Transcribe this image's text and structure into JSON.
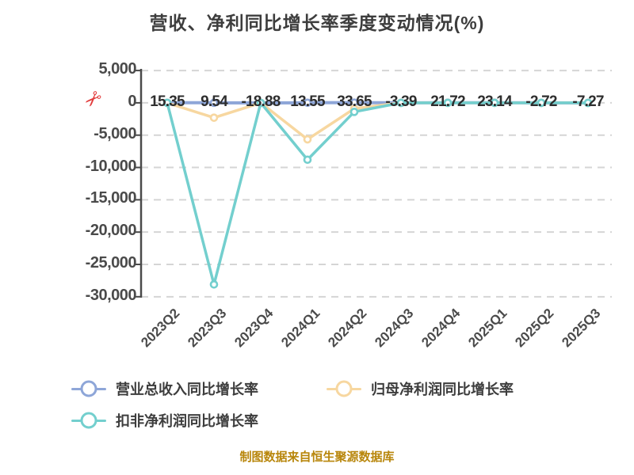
{
  "title": "营收、净利同比增长率季度变动情况(%)",
  "footer": "制图数据来自恒生聚源数据库",
  "icons": {
    "axis_break_scissors": "✂"
  },
  "colors": {
    "title_text": "#3D3D3D",
    "axis_text": "#4A4A4A",
    "axis_line": "#4A4A4A",
    "grid_line": "#D5D5D5",
    "data_label_text": "#2E2E2E",
    "legend_text": "#3D3D3D",
    "footer_text": "#B8860B",
    "scissors_red": "#E23C3C",
    "marker_fill": "#FFFFFF"
  },
  "legend": {
    "items": [
      {
        "label": "营业总收入同比增长率"
      },
      {
        "label": "归母净利润同比增长率"
      },
      {
        "label": "扣非净利润同比增长率"
      }
    ]
  },
  "chart_data": {
    "type": "line",
    "title": "营收、净利同比增长率季度变动情况(%)",
    "xlabel": "",
    "ylabel": "",
    "ylim": [
      -30000,
      5000
    ],
    "grid": "horizontal-dashed",
    "legend_position": "bottom-left",
    "axis_break_marker": "red scissors at zero line",
    "categories": [
      "2023Q2",
      "2023Q3",
      "2023Q4",
      "2024Q1",
      "2024Q2",
      "2024Q3",
      "2024Q4",
      "2025Q1",
      "2025Q2",
      "2025Q3"
    ],
    "yticks": [
      {
        "value": 5000,
        "label": "5,000"
      },
      {
        "value": 0,
        "label": "0"
      },
      {
        "value": -5000,
        "label": "-5,000"
      },
      {
        "value": -10000,
        "label": "-10,000"
      },
      {
        "value": -15000,
        "label": "-15,000"
      },
      {
        "value": -20000,
        "label": "-20,000"
      },
      {
        "value": -25000,
        "label": "-25,000"
      },
      {
        "value": -30000,
        "label": "-30,000"
      }
    ],
    "series": [
      {
        "name": "营业总收入同比增长率",
        "color": "#8EA6D8",
        "line_width": 4,
        "show_labels": true,
        "values": [
          15.35,
          9.54,
          -18.88,
          13.55,
          33.65,
          -3.39,
          21.72,
          23.14,
          -2.72,
          -7.27
        ],
        "labels": [
          "15.35",
          "9.54",
          "-18.88",
          "13.55",
          "33.65",
          "-3.39",
          "21.72",
          "23.14",
          "-2.72",
          "-7.27"
        ]
      },
      {
        "name": "归母净利润同比增长率",
        "color": "#F7D7A0",
        "line_width": 3.5,
        "show_labels": false,
        "values_estimated_from_pixels": true,
        "values": [
          0,
          -2300,
          0,
          -5650,
          -900,
          0,
          0,
          0,
          0,
          0
        ]
      },
      {
        "name": "扣非净利润同比增长率",
        "color": "#73CFCE",
        "line_width": 3.5,
        "show_labels": false,
        "values_estimated_from_pixels": true,
        "values": [
          0,
          -28100,
          0,
          -8800,
          -1400,
          0,
          0,
          0,
          0,
          0
        ]
      }
    ]
  }
}
